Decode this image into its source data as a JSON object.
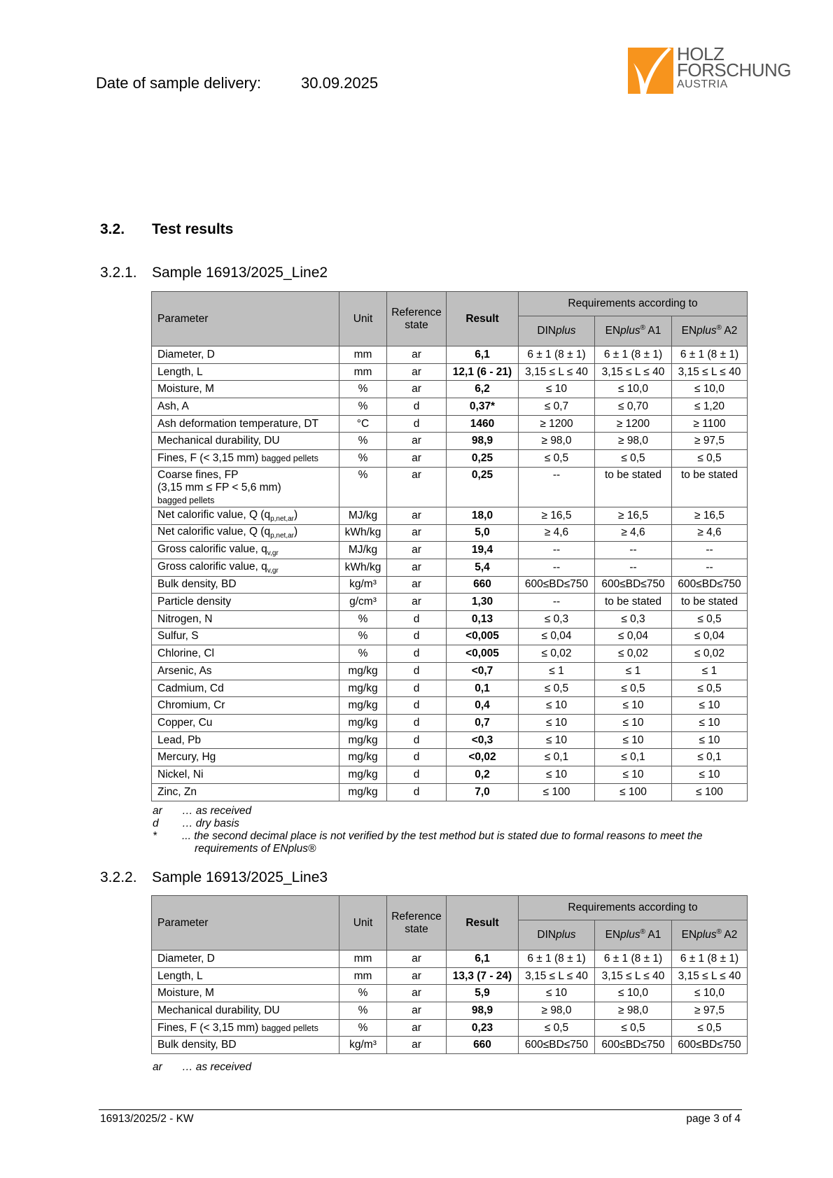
{
  "header": {
    "delivery_label": "Date of sample delivery:",
    "delivery_date": "30.09.2025",
    "logo": {
      "line1": "HOLZ",
      "line2": "FORSCHUNG",
      "line3": "AUSTRIA",
      "color": "#f7941d"
    }
  },
  "section": {
    "number": "3.2.",
    "title": "Test results"
  },
  "table_header": {
    "parameter": "Parameter",
    "unit": "Unit",
    "reference": "Reference state",
    "result": "Result",
    "requirements": "Requirements according to",
    "din": {
      "a": "DIN",
      "b": "plus",
      "c": ""
    },
    "a1": {
      "a": "EN",
      "b": "plus",
      "sup": "®",
      "c": " A1"
    },
    "a2": {
      "a": "EN",
      "b": "plus",
      "sup": "®",
      "c": " A2"
    }
  },
  "samples": [
    {
      "number": "3.2.1.",
      "title": "Sample 16913/2025_Line2",
      "rows": [
        {
          "param": "Diameter, D",
          "unit": "mm",
          "ref": "ar",
          "result": "6,1",
          "din": "6 ± 1 (8 ± 1)",
          "a1": "6 ± 1 (8 ± 1)",
          "a2": "6 ± 1 (8 ± 1)"
        },
        {
          "param": "Length, L",
          "unit": "mm",
          "ref": "ar",
          "result": "12,1 (6 - 21)",
          "din": "3,15 ≤ L ≤ 40",
          "a1": "3,15 ≤ L ≤ 40",
          "a2": "3,15 ≤ L ≤ 40"
        },
        {
          "param": "Moisture, M",
          "unit": "%",
          "ref": "ar",
          "result": "6,2",
          "din": "≤ 10",
          "a1": "≤ 10,0",
          "a2": "≤ 10,0"
        },
        {
          "param": "Ash, A",
          "unit": "%",
          "ref": "d",
          "result": "0,37*",
          "din": "≤ 0,7",
          "a1": "≤ 0,70",
          "a2": "≤ 1,20"
        },
        {
          "param": "Ash deformation temperature, DT",
          "unit": "°C",
          "ref": "d",
          "result": "1460",
          "din": "≥ 1200",
          "a1": "≥ 1200",
          "a2": "≥ 1100"
        },
        {
          "param": "Mechanical durability, DU",
          "unit": "%",
          "ref": "ar",
          "result": "98,9",
          "din": "≥ 98,0",
          "a1": "≥ 98,0",
          "a2": "≥ 97,5"
        },
        {
          "param": "Fines, F (< 3,15 mm) ",
          "small": "bagged pellets",
          "unit": "%",
          "ref": "ar",
          "result": "0,25",
          "din": "≤ 0,5",
          "a1": "≤ 0,5",
          "a2": "≤ 0,5"
        },
        {
          "param": "Coarse fines, FP",
          "line2": "(3,15 mm ≤ FP < 5,6 mm)",
          "small_line": "bagged pellets",
          "unit": "%",
          "ref": "ar",
          "result": "0,25",
          "din": "--",
          "a1": "to be stated",
          "a2": "to be stated"
        },
        {
          "param": "Net calorific value, Q (q",
          "sub": "p,net,ar",
          "tail": ")",
          "unit": "MJ/kg",
          "ref": "ar",
          "result": "18,0",
          "din": "≥ 16,5",
          "a1": "≥ 16,5",
          "a2": "≥ 16,5"
        },
        {
          "param": "Net calorific value, Q (q",
          "sub": "p,net,ar",
          "tail": ")",
          "unit": "kWh/kg",
          "ref": "ar",
          "result": "5,0",
          "din": "≥ 4,6",
          "a1": "≥ 4,6",
          "a2": "≥ 4,6"
        },
        {
          "param": "Gross calorific value, q",
          "sub": "v,gr",
          "unit": "MJ/kg",
          "ref": "ar",
          "result": "19,4",
          "din": "--",
          "a1": "--",
          "a2": "--"
        },
        {
          "param": "Gross calorific value, q",
          "sub": "v,gr",
          "unit": "kWh/kg",
          "ref": "ar",
          "result": "5,4",
          "din": "--",
          "a1": "--",
          "a2": "--"
        },
        {
          "param": "Bulk density, BD",
          "unit": "kg/m³",
          "ref": "ar",
          "result": "660",
          "din": "600≤BD≤750",
          "a1": "600≤BD≤750",
          "a2": "600≤BD≤750"
        },
        {
          "param": "Particle density",
          "unit": "g/cm³",
          "ref": "ar",
          "result": "1,30",
          "din": "--",
          "a1": "to be stated",
          "a2": "to be stated"
        },
        {
          "param": "Nitrogen, N",
          "unit": "%",
          "ref": "d",
          "result": "0,13",
          "din": "≤ 0,3",
          "a1": "≤ 0,3",
          "a2": "≤ 0,5"
        },
        {
          "param": "Sulfur, S",
          "unit": "%",
          "ref": "d",
          "result": "<0,005",
          "din": "≤ 0,04",
          "a1": "≤ 0,04",
          "a2": "≤ 0,04"
        },
        {
          "param": "Chlorine, Cl",
          "unit": "%",
          "ref": "d",
          "result": "<0,005",
          "din": "≤ 0,02",
          "a1": "≤ 0,02",
          "a2": "≤ 0,02"
        },
        {
          "param": "Arsenic, As",
          "unit": "mg/kg",
          "ref": "d",
          "result": "<0,7",
          "din": "≤ 1",
          "a1": "≤ 1",
          "a2": "≤ 1"
        },
        {
          "param": "Cadmium, Cd",
          "unit": "mg/kg",
          "ref": "d",
          "result": "0,1",
          "din": "≤ 0,5",
          "a1": "≤ 0,5",
          "a2": "≤ 0,5"
        },
        {
          "param": "Chromium, Cr",
          "unit": "mg/kg",
          "ref": "d",
          "result": "0,4",
          "din": "≤ 10",
          "a1": "≤ 10",
          "a2": "≤ 10"
        },
        {
          "param": "Copper, Cu",
          "unit": "mg/kg",
          "ref": "d",
          "result": "0,7",
          "din": "≤ 10",
          "a1": "≤ 10",
          "a2": "≤ 10"
        },
        {
          "param": "Lead, Pb",
          "unit": "mg/kg",
          "ref": "d",
          "result": "<0,3",
          "din": "≤ 10",
          "a1": "≤ 10",
          "a2": "≤ 10"
        },
        {
          "param": "Mercury, Hg",
          "unit": "mg/kg",
          "ref": "d",
          "result": "<0,02",
          "din": "≤ 0,1",
          "a1": "≤ 0,1",
          "a2": "≤ 0,1"
        },
        {
          "param": "Nickel, Ni",
          "unit": "mg/kg",
          "ref": "d",
          "result": "0,2",
          "din": "≤ 10",
          "a1": "≤ 10",
          "a2": "≤ 10"
        },
        {
          "param": "Zinc, Zn",
          "unit": "mg/kg",
          "ref": "d",
          "result": "7,0",
          "din": "≤ 100",
          "a1": "≤ 100",
          "a2": "≤ 100"
        }
      ],
      "footnotes": [
        {
          "key": "ar",
          "text": "… as received"
        },
        {
          "key": "d",
          "text": "… dry basis"
        },
        {
          "key": "*",
          "text": "... the second decimal place is not verified by the test method but is stated due to formal reasons to meet the requirements of ENplus®"
        }
      ]
    },
    {
      "number": "3.2.2.",
      "title": "Sample 16913/2025_Line3",
      "rows": [
        {
          "param": "Diameter, D",
          "unit": "mm",
          "ref": "ar",
          "result": "6,1",
          "din": "6 ± 1 (8 ± 1)",
          "a1": "6 ± 1 (8 ± 1)",
          "a2": "6 ± 1 (8 ± 1)"
        },
        {
          "param": "Length, L",
          "unit": "mm",
          "ref": "ar",
          "result": "13,3 (7 - 24)",
          "din": "3,15 ≤ L ≤ 40",
          "a1": "3,15 ≤ L ≤ 40",
          "a2": "3,15 ≤ L ≤ 40"
        },
        {
          "param": "Moisture, M",
          "unit": "%",
          "ref": "ar",
          "result": "5,9",
          "din": "≤ 10",
          "a1": "≤ 10,0",
          "a2": "≤ 10,0"
        },
        {
          "param": "Mechanical durability, DU",
          "unit": "%",
          "ref": "ar",
          "result": "98,9",
          "din": "≥ 98,0",
          "a1": "≥ 98,0",
          "a2": "≥ 97,5"
        },
        {
          "param": "Fines, F (< 3,15 mm) ",
          "small": "bagged pellets",
          "unit": "%",
          "ref": "ar",
          "result": "0,23",
          "din": "≤ 0,5",
          "a1": "≤ 0,5",
          "a2": "≤ 0,5"
        },
        {
          "param": "Bulk density, BD",
          "unit": "kg/m³",
          "ref": "ar",
          "result": "660",
          "din": "600≤BD≤750",
          "a1": "600≤BD≤750",
          "a2": "600≤BD≤750"
        }
      ],
      "footnotes": [
        {
          "key": "ar",
          "text": "… as received"
        }
      ]
    }
  ],
  "footer": {
    "left": "16913/2025/2 - KW",
    "right": "page 3 of 4"
  }
}
